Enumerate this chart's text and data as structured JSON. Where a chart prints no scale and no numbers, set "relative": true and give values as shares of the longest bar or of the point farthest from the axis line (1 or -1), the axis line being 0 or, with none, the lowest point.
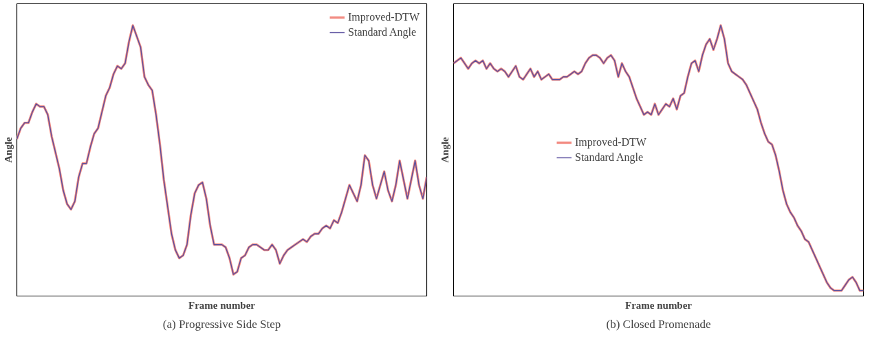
{
  "chart_data": [
    {
      "type": "line",
      "title": "(a) Progressive Side Step",
      "xlabel": "Frame number",
      "ylabel": "Angle",
      "relative": true,
      "legend": "top right",
      "grid": false,
      "categories": [
        null,
        null,
        null,
        null,
        null,
        null,
        null,
        null,
        null,
        null,
        null,
        null,
        null,
        null,
        null,
        null,
        null,
        null,
        null,
        null,
        null,
        null,
        null,
        null,
        null,
        null,
        null,
        null,
        null,
        null,
        null,
        null,
        null,
        null,
        null,
        null,
        null,
        null,
        null,
        null,
        null,
        null,
        null,
        null,
        null,
        null,
        null,
        null,
        null,
        null,
        null,
        null,
        null,
        null,
        null,
        null,
        null,
        null,
        null,
        null,
        null,
        null,
        null,
        null,
        null,
        null,
        null,
        null,
        null,
        null,
        null,
        null,
        null,
        null,
        null,
        null,
        null,
        null,
        null,
        null,
        null,
        null,
        null,
        null,
        null,
        null,
        null,
        null,
        null,
        null,
        null,
        null,
        null,
        null,
        null,
        null,
        null,
        null,
        null,
        null,
        null,
        null,
        null,
        null,
        null,
        null,
        null
      ],
      "series": [
        {
          "name": "Improved-DTW",
          "color": "#f28b82",
          "values": [
            0.58,
            0.62,
            0.64,
            0.64,
            0.68,
            0.71,
            0.7,
            0.7,
            0.67,
            0.59,
            0.53,
            0.47,
            0.39,
            0.34,
            0.32,
            0.35,
            0.44,
            0.49,
            0.49,
            0.55,
            0.6,
            0.62,
            0.68,
            0.74,
            0.77,
            0.82,
            0.85,
            0.84,
            0.86,
            0.94,
            1,
            0.96,
            0.92,
            0.81,
            0.78,
            0.76,
            0.67,
            0.56,
            0.43,
            0.33,
            0.23,
            0.17,
            0.14,
            0.15,
            0.19,
            0.3,
            0.38,
            0.41,
            0.42,
            0.36,
            0.26,
            0.19,
            0.19,
            0.19,
            0.18,
            0.14,
            0.08,
            0.09,
            0.14,
            0.15,
            0.18,
            0.19,
            0.19,
            0.18,
            0.17,
            0.17,
            0.19,
            0.17,
            0.12,
            0.15,
            0.17,
            0.18,
            0.19,
            0.2,
            0.21,
            0.2,
            0.22,
            0.23,
            0.23,
            0.25,
            0.26,
            0.25,
            0.28,
            0.27,
            0.31,
            0.36,
            0.41,
            0.38,
            0.35,
            0.41,
            0.52,
            0.5,
            0.41,
            0.36,
            0.41,
            0.46,
            0.39,
            0.35,
            0.41,
            0.5,
            0.43,
            0.36,
            0.43,
            0.5,
            0.41,
            0.36,
            0.44
          ]
        },
        {
          "name": "Standard Angle",
          "color": "#5a4f9e",
          "values": [
            0.58,
            0.62,
            0.64,
            0.64,
            0.68,
            0.71,
            0.7,
            0.7,
            0.67,
            0.59,
            0.53,
            0.47,
            0.39,
            0.34,
            0.32,
            0.35,
            0.44,
            0.49,
            0.49,
            0.55,
            0.6,
            0.62,
            0.68,
            0.74,
            0.77,
            0.82,
            0.85,
            0.84,
            0.86,
            0.94,
            1,
            0.96,
            0.92,
            0.81,
            0.78,
            0.76,
            0.67,
            0.56,
            0.43,
            0.33,
            0.23,
            0.17,
            0.14,
            0.15,
            0.19,
            0.3,
            0.38,
            0.41,
            0.42,
            0.36,
            0.26,
            0.19,
            0.19,
            0.19,
            0.18,
            0.14,
            0.08,
            0.09,
            0.14,
            0.15,
            0.18,
            0.19,
            0.19,
            0.18,
            0.17,
            0.17,
            0.19,
            0.17,
            0.12,
            0.15,
            0.17,
            0.18,
            0.19,
            0.2,
            0.21,
            0.2,
            0.22,
            0.23,
            0.23,
            0.25,
            0.26,
            0.25,
            0.28,
            0.27,
            0.31,
            0.36,
            0.41,
            0.38,
            0.35,
            0.41,
            0.52,
            0.5,
            0.41,
            0.36,
            0.41,
            0.46,
            0.39,
            0.35,
            0.41,
            0.5,
            0.43,
            0.36,
            0.43,
            0.5,
            0.41,
            0.36,
            0.44
          ]
        }
      ]
    },
    {
      "type": "line",
      "title": "(b) Closed Promenade",
      "xlabel": "Frame number",
      "ylabel": "Angle",
      "relative": true,
      "legend": "left",
      "grid": false,
      "categories": [
        null,
        null,
        null,
        null,
        null,
        null,
        null,
        null,
        null,
        null,
        null,
        null,
        null,
        null,
        null,
        null,
        null,
        null,
        null,
        null,
        null,
        null,
        null,
        null,
        null,
        null,
        null,
        null,
        null,
        null,
        null,
        null,
        null,
        null,
        null,
        null,
        null,
        null,
        null,
        null,
        null,
        null,
        null,
        null,
        null,
        null,
        null,
        null,
        null,
        null,
        null,
        null,
        null,
        null,
        null,
        null,
        null,
        null,
        null,
        null,
        null,
        null,
        null,
        null,
        null,
        null,
        null,
        null,
        null,
        null,
        null,
        null,
        null,
        null,
        null,
        null,
        null,
        null,
        null,
        null,
        null,
        null,
        null,
        null,
        null,
        null,
        null,
        null,
        null,
        null,
        null,
        null,
        null,
        null,
        null,
        null,
        null,
        null,
        null,
        null,
        null,
        null,
        null,
        null,
        null,
        null,
        null,
        null,
        null,
        null,
        null,
        null,
        null
      ],
      "series": [
        {
          "name": "Improved-DTW",
          "color": "#f28b82",
          "values": [
            0.86,
            0.87,
            0.88,
            0.86,
            0.84,
            0.86,
            0.87,
            0.86,
            0.87,
            0.84,
            0.86,
            0.84,
            0.83,
            0.84,
            0.83,
            0.81,
            0.83,
            0.85,
            0.81,
            0.8,
            0.82,
            0.84,
            0.81,
            0.83,
            0.8,
            0.81,
            0.82,
            0.8,
            0.8,
            0.8,
            0.81,
            0.81,
            0.82,
            0.83,
            0.82,
            0.83,
            0.86,
            0.88,
            0.89,
            0.89,
            0.88,
            0.86,
            0.88,
            0.89,
            0.87,
            0.81,
            0.86,
            0.83,
            0.81,
            0.77,
            0.73,
            0.7,
            0.67,
            0.68,
            0.67,
            0.71,
            0.67,
            0.69,
            0.71,
            0.7,
            0.73,
            0.69,
            0.74,
            0.75,
            0.81,
            0.86,
            0.87,
            0.83,
            0.89,
            0.93,
            0.95,
            0.91,
            0.95,
            1,
            0.95,
            0.86,
            0.83,
            0.82,
            0.81,
            0.8,
            0.78,
            0.75,
            0.72,
            0.69,
            0.64,
            0.6,
            0.57,
            0.56,
            0.52,
            0.46,
            0.39,
            0.34,
            0.31,
            0.29,
            0.26,
            0.24,
            0.21,
            0.2,
            0.17,
            0.14,
            0.11,
            0.08,
            0.05,
            0.03,
            0.02,
            0.02,
            0.02,
            0.04,
            0.06,
            0.07,
            0.05,
            0.02,
            0.02
          ]
        },
        {
          "name": "Standard Angle",
          "color": "#5a4f9e",
          "values": [
            0.86,
            0.87,
            0.88,
            0.86,
            0.84,
            0.86,
            0.87,
            0.86,
            0.87,
            0.84,
            0.86,
            0.84,
            0.83,
            0.84,
            0.83,
            0.81,
            0.83,
            0.85,
            0.81,
            0.8,
            0.82,
            0.84,
            0.81,
            0.83,
            0.8,
            0.81,
            0.82,
            0.8,
            0.8,
            0.8,
            0.81,
            0.81,
            0.82,
            0.83,
            0.82,
            0.83,
            0.86,
            0.88,
            0.89,
            0.89,
            0.88,
            0.86,
            0.88,
            0.89,
            0.87,
            0.81,
            0.86,
            0.83,
            0.81,
            0.77,
            0.73,
            0.7,
            0.67,
            0.68,
            0.67,
            0.71,
            0.67,
            0.69,
            0.71,
            0.7,
            0.73,
            0.69,
            0.74,
            0.75,
            0.81,
            0.86,
            0.87,
            0.83,
            0.89,
            0.93,
            0.95,
            0.91,
            0.95,
            1,
            0.95,
            0.86,
            0.83,
            0.82,
            0.81,
            0.8,
            0.78,
            0.75,
            0.72,
            0.69,
            0.64,
            0.6,
            0.57,
            0.56,
            0.52,
            0.46,
            0.39,
            0.34,
            0.31,
            0.29,
            0.26,
            0.24,
            0.21,
            0.2,
            0.17,
            0.14,
            0.11,
            0.08,
            0.05,
            0.03,
            0.02,
            0.02,
            0.02,
            0.04,
            0.06,
            0.07,
            0.05,
            0.02,
            0.02
          ]
        }
      ]
    }
  ]
}
